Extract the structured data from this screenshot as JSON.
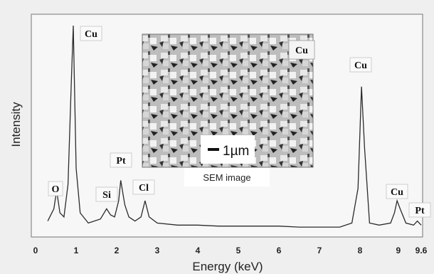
{
  "chart_data": {
    "type": "line",
    "xlabel": "Energy (keV)",
    "ylabel": "Intensity",
    "xlim": [
      0,
      9.6
    ],
    "x_ticks": [
      "0",
      "1",
      "2",
      "3",
      "4",
      "5",
      "6",
      "7",
      "8",
      "9",
      "9.6"
    ],
    "x_tick_values": [
      0,
      1,
      2,
      3,
      4,
      5,
      6,
      7,
      8,
      9,
      9.6
    ],
    "ylim": [
      0,
      100
    ],
    "grid": false,
    "series": [
      {
        "x": [
          0.3,
          0.45,
          0.52,
          0.6,
          0.7,
          0.8,
          0.88,
          0.93,
          1.0,
          1.1,
          1.3,
          1.6,
          1.75,
          1.85,
          1.95,
          2.05,
          2.1,
          2.2,
          2.3,
          2.45,
          2.6,
          2.7,
          2.8,
          3.0,
          3.5,
          4.0,
          4.5,
          5.0,
          5.5,
          6.0,
          6.5,
          7.0,
          7.5,
          7.8,
          7.95,
          8.04,
          8.12,
          8.25,
          8.5,
          8.8,
          8.9,
          8.97,
          9.05,
          9.2,
          9.4,
          9.5,
          9.6
        ],
        "y": [
          4,
          10,
          19,
          8,
          6,
          22,
          72,
          100,
          30,
          8,
          3,
          5,
          10,
          7,
          6,
          14,
          24,
          12,
          6,
          4,
          6,
          14,
          6,
          3,
          2,
          2,
          1.5,
          1.5,
          1.5,
          1.5,
          1,
          1,
          1,
          3,
          20,
          70,
          40,
          3,
          2,
          3,
          8,
          14,
          10,
          3,
          2,
          4,
          2
        ]
      }
    ],
    "peaks": [
      {
        "label": "O",
        "x": 0.52
      },
      {
        "label": "Cu",
        "x": 0.93
      },
      {
        "label": "Si",
        "x": 1.75
      },
      {
        "label": "Pt",
        "x": 2.1
      },
      {
        "label": "Cl",
        "x": 2.7
      },
      {
        "label": "Cu",
        "x": 8.04
      },
      {
        "label": "Cu",
        "x": 8.97
      },
      {
        "label": "Pt",
        "x": 9.5
      }
    ]
  },
  "inset": {
    "scale_label": "1µm",
    "caption": "SEM image",
    "tag": "Cu"
  }
}
